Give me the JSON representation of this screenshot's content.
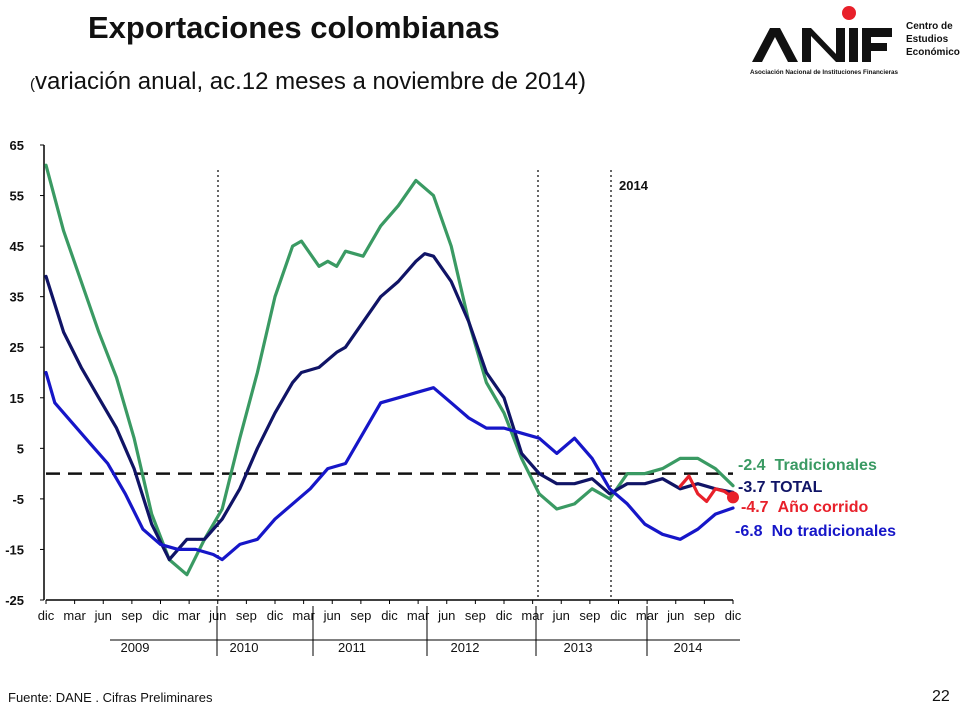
{
  "title": "Exportaciones colombianas",
  "subtitle_open": "(",
  "subtitle": "variación anual, ac.12 meses a noviembre de 2014)",
  "logo": {
    "name": "ANIF",
    "tagline": "Asociación Nacional de Instituciones Financieras",
    "side_line1": "Centro de",
    "side_line2": "Estudios",
    "side_line3": "Económicos",
    "accent_color": "#e8202a"
  },
  "source": "Fuente: DANE . Cifras Preliminares",
  "page_number": "22",
  "chart_data": {
    "type": "line",
    "ylim": [
      -25,
      65
    ],
    "yticks": [
      "65",
      "55",
      "45",
      "35",
      "25",
      "15",
      "5",
      "-5",
      "-15",
      "-25"
    ],
    "x_month_labels": [
      "dic",
      "mar",
      "jun",
      "sep",
      "dic",
      "mar",
      "jun",
      "sep",
      "dic",
      "mar",
      "jun",
      "sep",
      "dic",
      "mar",
      "jun",
      "sep",
      "dic",
      "mar",
      "jun",
      "sep",
      "dic",
      "mar",
      "jun",
      "sep",
      "dic"
    ],
    "x_year_labels": [
      "2009",
      "2010",
      "2011",
      "2012",
      "2013",
      "2014"
    ],
    "x_start": "Dec 2008",
    "x_end": "Nov 2014",
    "vertical_lines_at": [
      "Jun 2010",
      "Dec 2013",
      "Jun 2014"
    ],
    "annotation_2014": "2014",
    "zero_line": 0,
    "series": [
      {
        "name": "Tradicionales",
        "color": "#3a9a63",
        "last_value": -2.4,
        "label_value": "-2.4",
        "points": [
          [
            0,
            61
          ],
          [
            2,
            48
          ],
          [
            4,
            38
          ],
          [
            6,
            28
          ],
          [
            8,
            19
          ],
          [
            10,
            7
          ],
          [
            12,
            -8
          ],
          [
            14,
            -17
          ],
          [
            16,
            -20
          ],
          [
            18,
            -13
          ],
          [
            20,
            -7
          ],
          [
            22,
            7
          ],
          [
            24,
            20
          ],
          [
            26,
            35
          ],
          [
            28,
            45
          ],
          [
            29,
            46
          ],
          [
            31,
            41
          ],
          [
            32,
            42
          ],
          [
            33,
            41
          ],
          [
            34,
            44
          ],
          [
            36,
            43
          ],
          [
            38,
            49
          ],
          [
            40,
            53
          ],
          [
            42,
            58
          ],
          [
            44,
            55
          ],
          [
            46,
            45
          ],
          [
            48,
            30
          ],
          [
            50,
            18
          ],
          [
            52,
            12
          ],
          [
            54,
            3
          ],
          [
            56,
            -4
          ],
          [
            58,
            -7
          ],
          [
            60,
            -6
          ],
          [
            62,
            -3
          ],
          [
            64,
            -5
          ],
          [
            66,
            0
          ],
          [
            68,
            0
          ],
          [
            70,
            1
          ],
          [
            72,
            3
          ],
          [
            74,
            3
          ],
          [
            76,
            1
          ],
          [
            78,
            -2.4
          ]
        ]
      },
      {
        "name": "TOTAL",
        "color": "#101466",
        "last_value": -3.7,
        "label_value": "-3.7",
        "points": [
          [
            0,
            39
          ],
          [
            2,
            28
          ],
          [
            4,
            21
          ],
          [
            6,
            15
          ],
          [
            8,
            9
          ],
          [
            10,
            1
          ],
          [
            12,
            -10
          ],
          [
            14,
            -17
          ],
          [
            16,
            -13
          ],
          [
            18,
            -13
          ],
          [
            20,
            -9
          ],
          [
            22,
            -3
          ],
          [
            24,
            5
          ],
          [
            26,
            12
          ],
          [
            28,
            18
          ],
          [
            29,
            20
          ],
          [
            31,
            21
          ],
          [
            33,
            24
          ],
          [
            34,
            25
          ],
          [
            36,
            30
          ],
          [
            38,
            35
          ],
          [
            40,
            38
          ],
          [
            42,
            42
          ],
          [
            43,
            43.5
          ],
          [
            44,
            43
          ],
          [
            46,
            38
          ],
          [
            48,
            30
          ],
          [
            50,
            20
          ],
          [
            52,
            15
          ],
          [
            54,
            4
          ],
          [
            56,
            0
          ],
          [
            58,
            -2
          ],
          [
            60,
            -2
          ],
          [
            62,
            -1
          ],
          [
            64,
            -4
          ],
          [
            66,
            -2
          ],
          [
            68,
            -2
          ],
          [
            70,
            -1
          ],
          [
            72,
            -3
          ],
          [
            74,
            -2
          ],
          [
            76,
            -3
          ],
          [
            78,
            -3.7
          ]
        ]
      },
      {
        "name": "Año corrido",
        "color": "#e8202a",
        "last_value": -4.7,
        "label_value": "-4.7",
        "points": [
          [
            72,
            -2.5
          ],
          [
            73,
            -0.5
          ],
          [
            74,
            -4
          ],
          [
            75,
            -5.5
          ],
          [
            76,
            -3
          ],
          [
            77,
            -3.5
          ],
          [
            78,
            -4.7
          ]
        ]
      },
      {
        "name": "No tradicionales",
        "color": "#1616c8",
        "last_value": -6.8,
        "label_value": "-6.8",
        "points": [
          [
            0,
            20
          ],
          [
            1,
            14
          ],
          [
            3,
            10
          ],
          [
            5,
            6
          ],
          [
            7,
            2
          ],
          [
            9,
            -4
          ],
          [
            11,
            -11
          ],
          [
            13,
            -14
          ],
          [
            15,
            -15
          ],
          [
            17,
            -15
          ],
          [
            19,
            -16
          ],
          [
            20,
            -17
          ],
          [
            22,
            -14
          ],
          [
            24,
            -13
          ],
          [
            26,
            -9
          ],
          [
            28,
            -6
          ],
          [
            30,
            -3
          ],
          [
            32,
            1
          ],
          [
            34,
            2
          ],
          [
            36,
            8
          ],
          [
            38,
            14
          ],
          [
            40,
            15
          ],
          [
            42,
            16
          ],
          [
            44,
            17
          ],
          [
            46,
            14
          ],
          [
            48,
            11
          ],
          [
            50,
            9
          ],
          [
            52,
            9
          ],
          [
            54,
            8
          ],
          [
            56,
            7
          ],
          [
            58,
            4
          ],
          [
            60,
            7
          ],
          [
            62,
            3
          ],
          [
            64,
            -3
          ],
          [
            66,
            -6
          ],
          [
            68,
            -10
          ],
          [
            70,
            -12
          ],
          [
            72,
            -13
          ],
          [
            74,
            -11
          ],
          [
            76,
            -8
          ],
          [
            78,
            -6.8
          ]
        ]
      }
    ],
    "end_marker_value": -4.7
  }
}
